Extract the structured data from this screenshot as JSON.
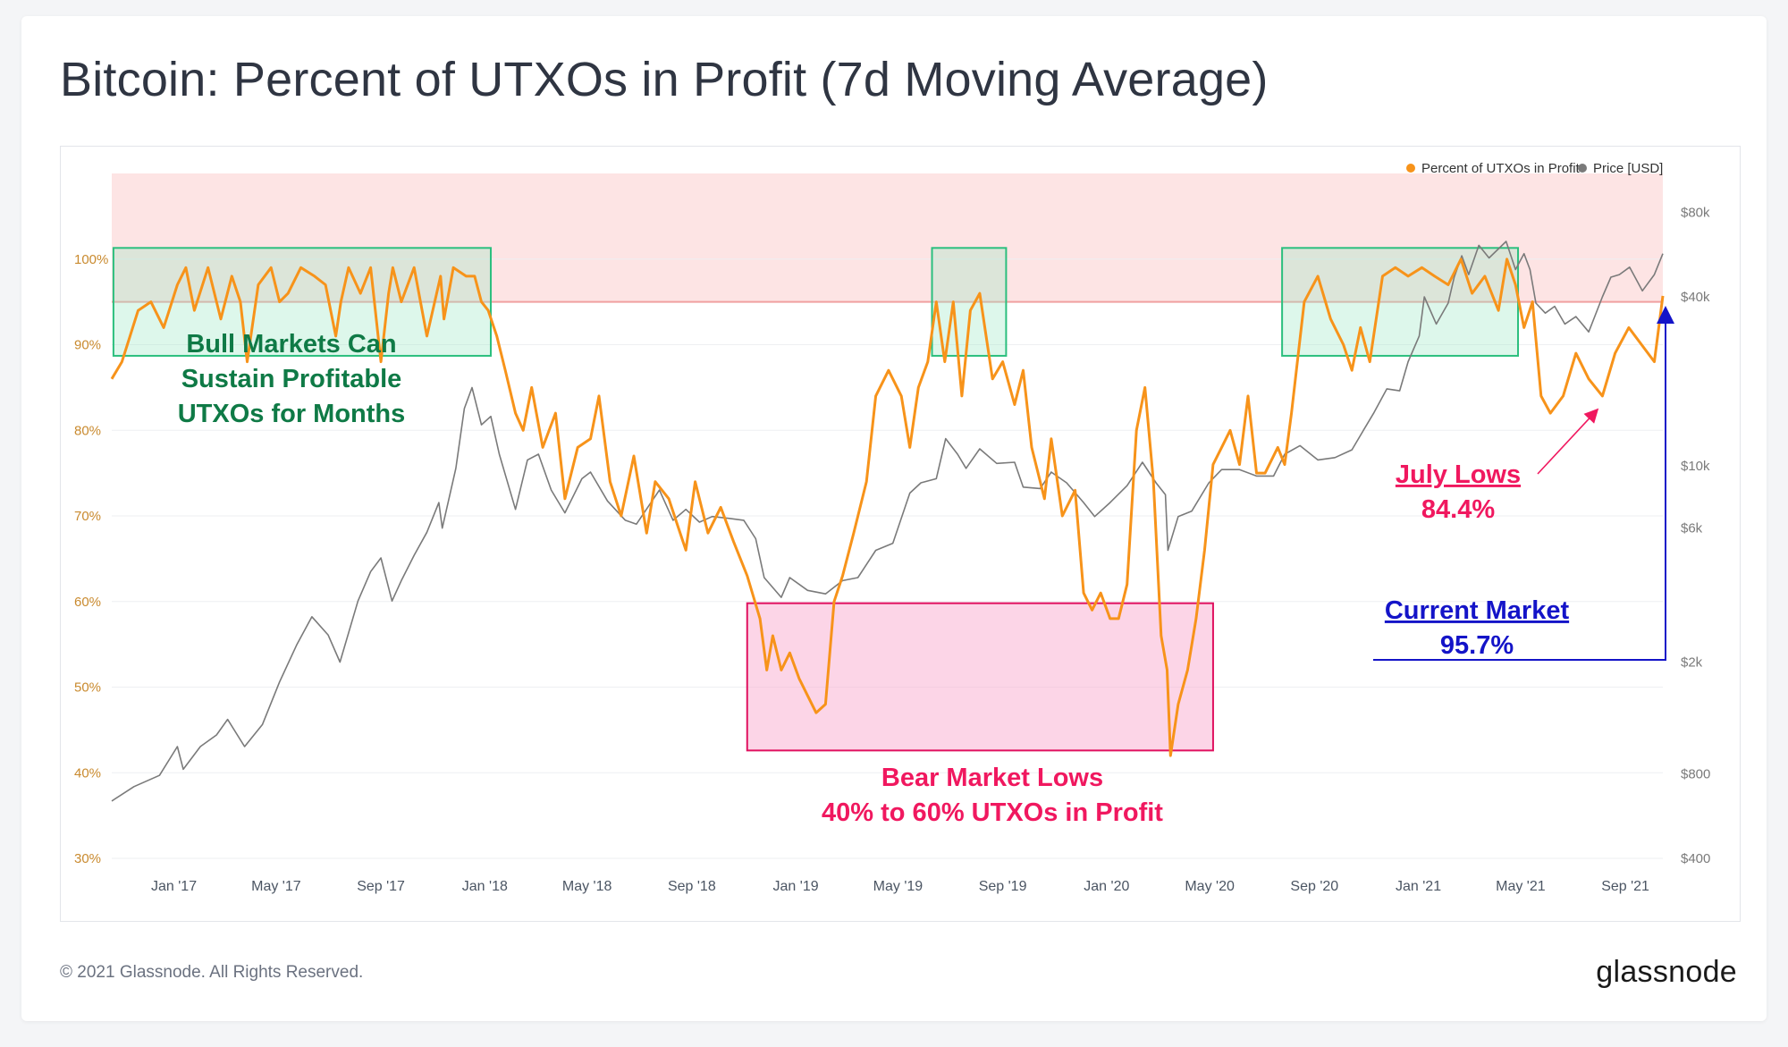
{
  "title": "Bitcoin: Percent of UTXOs in Profit (7d Moving Average)",
  "footer": "© 2021 Glassnode. All Rights Reserved.",
  "brand": "glassnode",
  "colors": {
    "profit_line": "#f7931a",
    "price_line": "#7a7a7a",
    "top_zone": "#fde4e4",
    "threshold_line": "#f0a0a0",
    "bull_box_border": "#2bbf7e",
    "bull_box_fill": "#9ee8c6",
    "bear_box_border": "#e0115f",
    "bear_box_fill": "#f9b3d3",
    "bull_text": "#0f7a46",
    "bear_text": "#f0185f",
    "current_text": "#1414c8",
    "left_tick": "#c98a2e",
    "right_tick": "#7a7a7a"
  },
  "chart_data": {
    "type": "line",
    "title": "Bitcoin: Percent of UTXOs in Profit (7d Moving Average)",
    "x_ticks": [
      "Jan '17",
      "May '17",
      "Sep '17",
      "Jan '18",
      "May '18",
      "Sep '18",
      "Jan '19",
      "May '19",
      "Sep '19",
      "Jan '20",
      "May '20",
      "Sep '20",
      "Jan '21",
      "May '21",
      "Sep '21"
    ],
    "x_range": [
      "2016-10-20",
      "2021-10-15"
    ],
    "y_left": {
      "ticks": [
        "30%",
        "40%",
        "50%",
        "60%",
        "70%",
        "80%",
        "90%",
        "100%"
      ],
      "range": [
        30,
        110
      ]
    },
    "y_right": {
      "scale": "log",
      "ticks": [
        "$400",
        "$800",
        "$2k",
        "$6k",
        "$10k",
        "$40k",
        "$80k"
      ],
      "tick_values": [
        400,
        800,
        2000,
        6000,
        10000,
        40000,
        80000
      ],
      "range": [
        400,
        110000
      ]
    },
    "legend": {
      "placement": "top-right",
      "entries": [
        "Percent of UTXOs in Profit",
        "Price [USD]"
      ]
    },
    "grid": "horizontal",
    "series": [
      {
        "name": "Percent of UTXOs in Profit",
        "axis": "left",
        "x": [
          "2016-10-20",
          "2016-11-01",
          "2016-11-20",
          "2016-12-05",
          "2016-12-20",
          "2017-01-05",
          "2017-01-15",
          "2017-01-25",
          "2017-02-10",
          "2017-02-25",
          "2017-03-10",
          "2017-03-20",
          "2017-03-28",
          "2017-04-10",
          "2017-04-25",
          "2017-05-05",
          "2017-05-15",
          "2017-05-30",
          "2017-06-15",
          "2017-06-28",
          "2017-07-10",
          "2017-07-16",
          "2017-07-25",
          "2017-08-08",
          "2017-08-20",
          "2017-09-01",
          "2017-09-10",
          "2017-09-15",
          "2017-09-25",
          "2017-10-10",
          "2017-10-25",
          "2017-11-10",
          "2017-11-14",
          "2017-11-25",
          "2017-12-10",
          "2017-12-20",
          "2017-12-28",
          "2018-01-05",
          "2018-01-15",
          "2018-01-25",
          "2018-02-06",
          "2018-02-15",
          "2018-02-25",
          "2018-03-10",
          "2018-03-25",
          "2018-04-05",
          "2018-04-20",
          "2018-05-05",
          "2018-05-15",
          "2018-05-28",
          "2018-06-10",
          "2018-06-25",
          "2018-07-10",
          "2018-07-20",
          "2018-08-05",
          "2018-08-15",
          "2018-08-25",
          "2018-09-05",
          "2018-09-20",
          "2018-10-05",
          "2018-10-20",
          "2018-11-05",
          "2018-11-20",
          "2018-11-28",
          "2018-12-05",
          "2018-12-15",
          "2018-12-25",
          "2019-01-05",
          "2019-01-15",
          "2019-01-25",
          "2019-02-05",
          "2019-02-15",
          "2019-02-25",
          "2019-03-10",
          "2019-03-25",
          "2019-04-05",
          "2019-04-20",
          "2019-05-05",
          "2019-05-15",
          "2019-05-25",
          "2019-06-05",
          "2019-06-15",
          "2019-06-25",
          "2019-07-05",
          "2019-07-15",
          "2019-07-25",
          "2019-08-05",
          "2019-08-20",
          "2019-09-01",
          "2019-09-15",
          "2019-09-25",
          "2019-10-05",
          "2019-10-20",
          "2019-10-28",
          "2019-11-10",
          "2019-11-25",
          "2019-12-05",
          "2019-12-15",
          "2019-12-25",
          "2020-01-05",
          "2020-01-15",
          "2020-01-25",
          "2020-02-05",
          "2020-02-15",
          "2020-02-25",
          "2020-03-05",
          "2020-03-12",
          "2020-03-16",
          "2020-03-25",
          "2020-04-05",
          "2020-04-15",
          "2020-04-25",
          "2020-05-05",
          "2020-05-15",
          "2020-05-25",
          "2020-06-05",
          "2020-06-15",
          "2020-06-25",
          "2020-07-05",
          "2020-07-20",
          "2020-07-28",
          "2020-08-05",
          "2020-08-20",
          "2020-09-05",
          "2020-09-20",
          "2020-10-05",
          "2020-10-15",
          "2020-10-25",
          "2020-11-05",
          "2020-11-20",
          "2020-12-05",
          "2020-12-20",
          "2021-01-05",
          "2021-01-20",
          "2021-02-05",
          "2021-02-20",
          "2021-03-05",
          "2021-03-20",
          "2021-04-05",
          "2021-04-15",
          "2021-04-25",
          "2021-05-05",
          "2021-05-15",
          "2021-05-25",
          "2021-06-05",
          "2021-06-20",
          "2021-07-05",
          "2021-07-20",
          "2021-08-05",
          "2021-08-20",
          "2021-09-05",
          "2021-09-20",
          "2021-10-05",
          "2021-10-15"
        ],
        "values": [
          86,
          88,
          94,
          95,
          92,
          97,
          99,
          94,
          99,
          93,
          98,
          95,
          88,
          97,
          99,
          95,
          96,
          99,
          98,
          97,
          91,
          95,
          99,
          96,
          99,
          88,
          96,
          99,
          95,
          99,
          91,
          98,
          93,
          99,
          98,
          98,
          95,
          94,
          91,
          87,
          82,
          80,
          85,
          78,
          82,
          72,
          78,
          79,
          84,
          74,
          70,
          77,
          68,
          74,
          72,
          69,
          66,
          74,
          68,
          71,
          67,
          63,
          58,
          52,
          56,
          52,
          54,
          51,
          49,
          47,
          48,
          60,
          63,
          68,
          74,
          84,
          87,
          84,
          78,
          85,
          88,
          95,
          88,
          95,
          84,
          94,
          96,
          86,
          88,
          83,
          87,
          78,
          72,
          79,
          70,
          73,
          61,
          59,
          61,
          58,
          58,
          62,
          80,
          85,
          74,
          56,
          52,
          42,
          48,
          52,
          58,
          66,
          76,
          78,
          80,
          76,
          84,
          75,
          75,
          78,
          76,
          82,
          95,
          98,
          93,
          90,
          87,
          92,
          88,
          98,
          99,
          98,
          99,
          98,
          97,
          100,
          96,
          98,
          94,
          100,
          97,
          92,
          95,
          84,
          82,
          84,
          89,
          86,
          84,
          89,
          92,
          90,
          88,
          95.7
        ]
      },
      {
        "name": "Price [USD]",
        "axis": "right",
        "x": [
          "2016-10-20",
          "2016-11-15",
          "2016-12-15",
          "2017-01-05",
          "2017-01-12",
          "2017-02-01",
          "2017-02-20",
          "2017-03-05",
          "2017-03-25",
          "2017-04-15",
          "2017-05-05",
          "2017-05-25",
          "2017-06-12",
          "2017-07-01",
          "2017-07-15",
          "2017-08-05",
          "2017-08-20",
          "2017-09-01",
          "2017-09-14",
          "2017-09-25",
          "2017-10-10",
          "2017-10-25",
          "2017-11-08",
          "2017-11-12",
          "2017-11-28",
          "2017-12-08",
          "2017-12-17",
          "2017-12-28",
          "2018-01-08",
          "2018-01-18",
          "2018-02-06",
          "2018-02-20",
          "2018-03-05",
          "2018-03-20",
          "2018-04-05",
          "2018-04-25",
          "2018-05-05",
          "2018-05-25",
          "2018-06-15",
          "2018-06-28",
          "2018-07-25",
          "2018-08-10",
          "2018-08-25",
          "2018-09-10",
          "2018-09-25",
          "2018-10-15",
          "2018-11-01",
          "2018-11-15",
          "2018-11-25",
          "2018-12-15",
          "2018-12-25",
          "2019-01-15",
          "2019-02-05",
          "2019-02-25",
          "2019-03-15",
          "2019-04-05",
          "2019-04-25",
          "2019-05-15",
          "2019-05-28",
          "2019-06-15",
          "2019-06-26",
          "2019-07-10",
          "2019-07-20",
          "2019-08-05",
          "2019-08-25",
          "2019-09-15",
          "2019-09-25",
          "2019-10-15",
          "2019-10-28",
          "2019-11-15",
          "2019-12-05",
          "2019-12-18",
          "2020-01-05",
          "2020-01-25",
          "2020-02-12",
          "2020-02-28",
          "2020-03-10",
          "2020-03-13",
          "2020-03-25",
          "2020-04-10",
          "2020-04-30",
          "2020-05-15",
          "2020-06-05",
          "2020-06-25",
          "2020-07-15",
          "2020-07-28",
          "2020-08-15",
          "2020-09-05",
          "2020-09-25",
          "2020-10-15",
          "2020-10-28",
          "2020-11-10",
          "2020-11-25",
          "2020-12-10",
          "2020-12-20",
          "2021-01-02",
          "2021-01-08",
          "2021-01-22",
          "2021-02-05",
          "2021-02-12",
          "2021-02-21",
          "2021-03-01",
          "2021-03-13",
          "2021-03-25",
          "2021-04-14",
          "2021-04-25",
          "2021-05-05",
          "2021-05-12",
          "2021-05-19",
          "2021-05-30",
          "2021-06-10",
          "2021-06-22",
          "2021-07-05",
          "2021-07-20",
          "2021-08-05",
          "2021-08-15",
          "2021-08-25",
          "2021-09-06",
          "2021-09-21",
          "2021-10-05",
          "2021-10-15"
        ],
        "values": [
          640,
          720,
          790,
          1000,
          830,
          1000,
          1100,
          1250,
          1000,
          1200,
          1700,
          2300,
          2900,
          2500,
          2000,
          3300,
          4200,
          4700,
          3300,
          3900,
          4800,
          5800,
          7400,
          6000,
          9800,
          16000,
          19000,
          14000,
          15000,
          11000,
          7000,
          10500,
          11000,
          8200,
          6800,
          9000,
          9500,
          7500,
          6400,
          6200,
          8200,
          6400,
          7000,
          6300,
          6600,
          6500,
          6400,
          5500,
          4000,
          3400,
          4000,
          3600,
          3500,
          3900,
          4000,
          5000,
          5300,
          8000,
          8700,
          9000,
          12500,
          11000,
          9800,
          11500,
          10200,
          10300,
          8400,
          8300,
          9500,
          8700,
          7400,
          6600,
          7400,
          8500,
          10300,
          8700,
          7900,
          5000,
          6600,
          6900,
          8700,
          9700,
          9700,
          9200,
          9200,
          11000,
          11800,
          10500,
          10700,
          11400,
          13300,
          15500,
          18800,
          18500,
          23500,
          29000,
          40000,
          32000,
          38000,
          47000,
          56000,
          48000,
          61000,
          55000,
          63000,
          50000,
          57000,
          50000,
          38000,
          35000,
          37000,
          32000,
          34000,
          30000,
          40000,
          47000,
          48000,
          51000,
          42000,
          48000,
          57000
        ]
      }
    ],
    "threshold": 95,
    "annotations": {
      "bull_text": [
        "Bull Markets Can",
        "Sustain Profitable",
        "UTXOs for Months"
      ],
      "bear_text": [
        "Bear Market Lows",
        "40% to 60% UTXOs in Profit"
      ],
      "july_text": [
        "July Lows",
        "84.4%"
      ],
      "current_text": [
        "Current Market",
        "95.7%"
      ]
    }
  }
}
